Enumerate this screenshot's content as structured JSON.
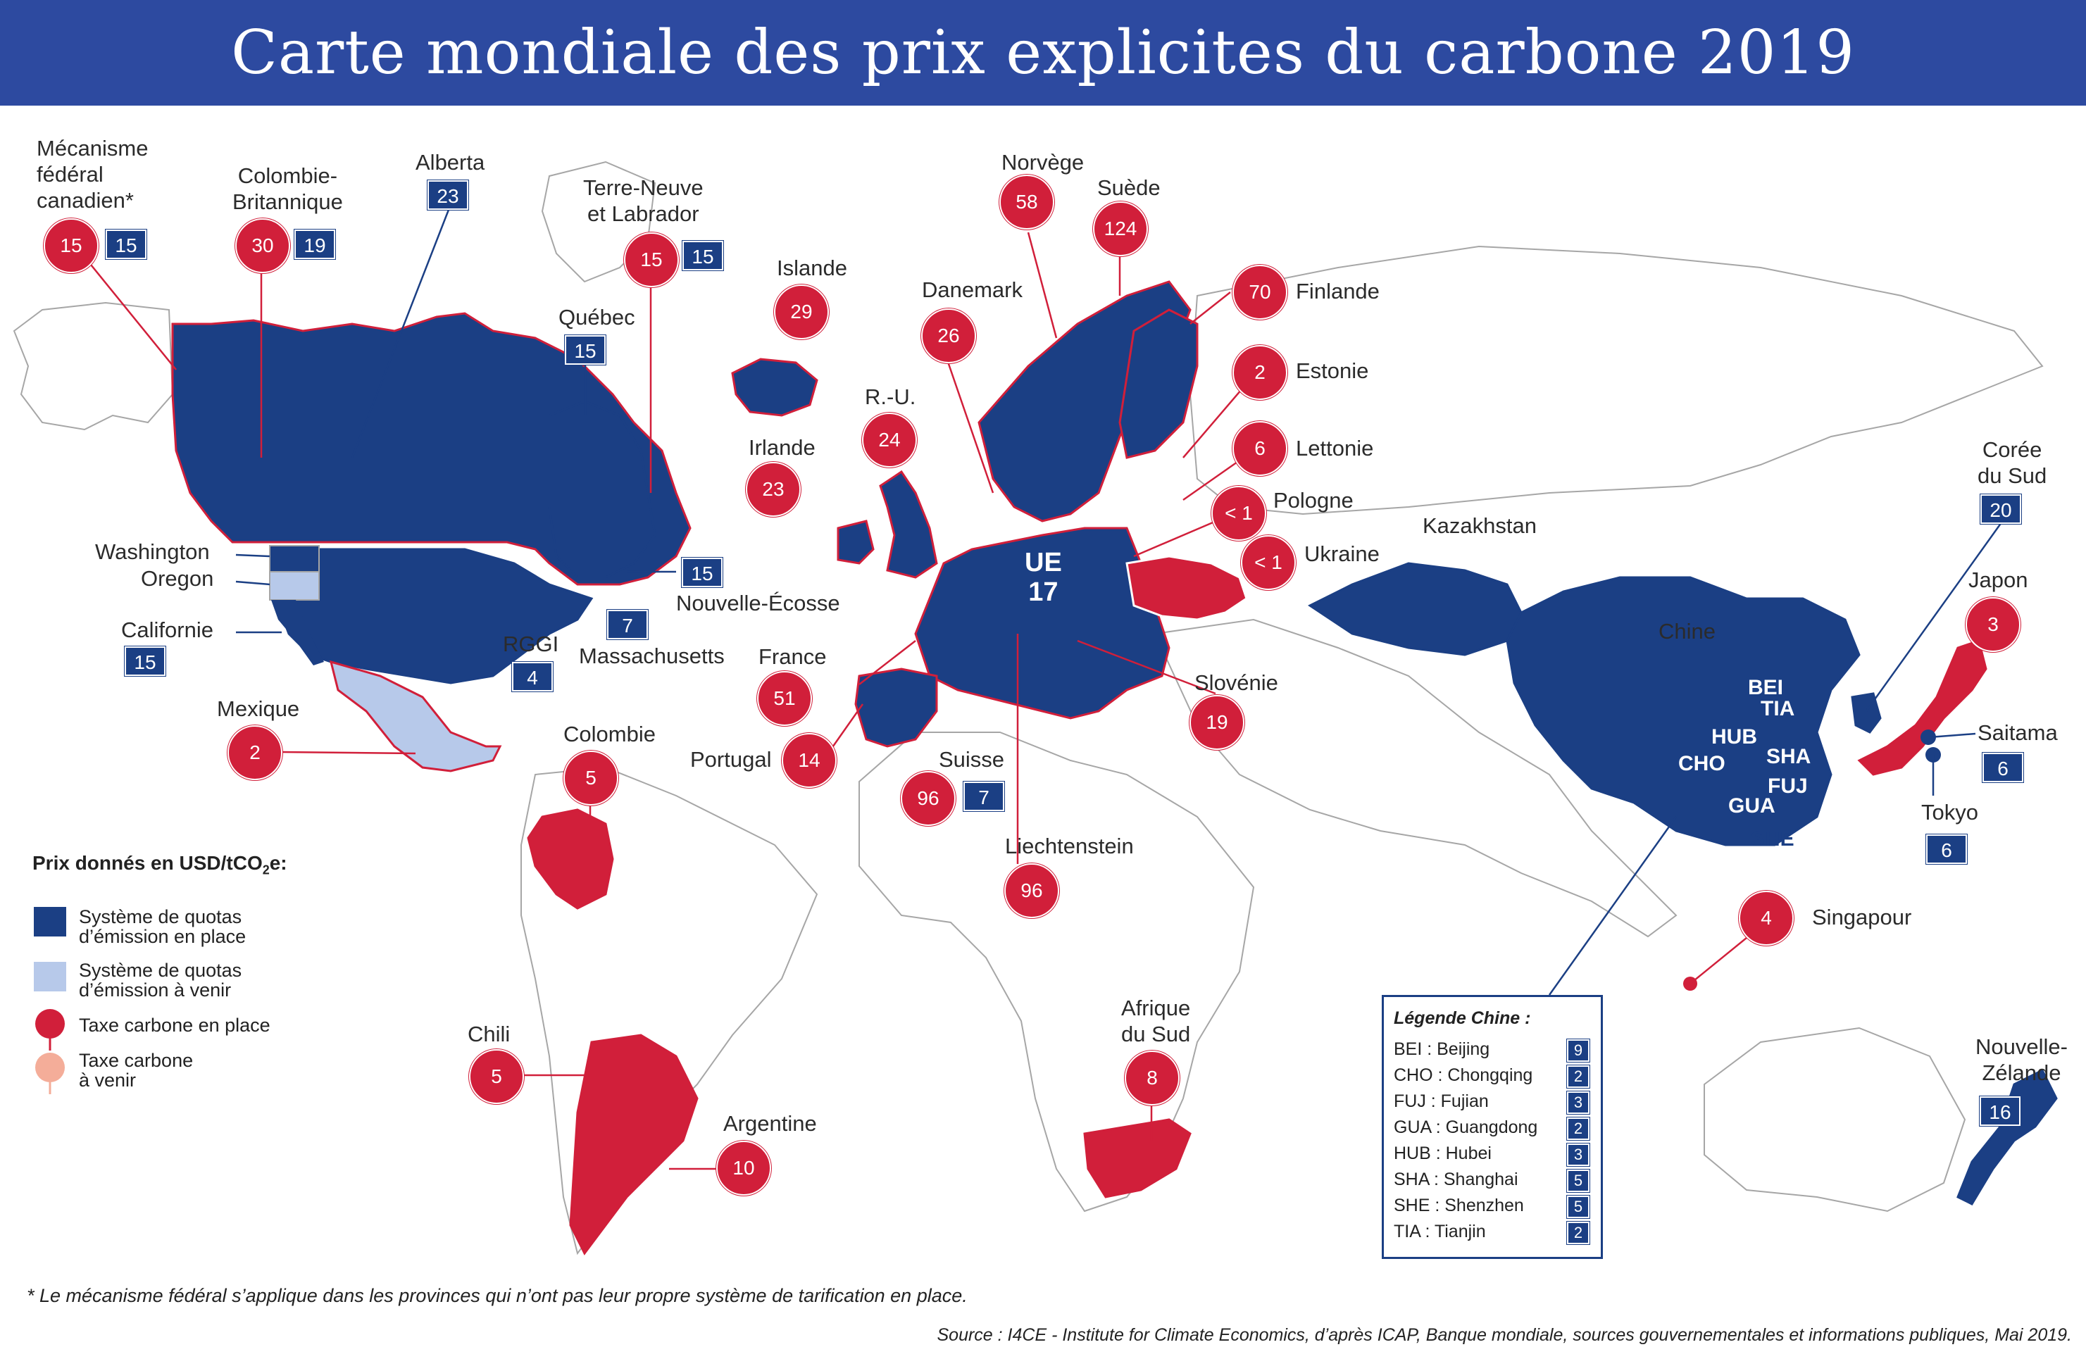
{
  "title": "Carte mondiale des prix explicites du carbone 2019",
  "colors": {
    "ets_in_place": "#1b3f84",
    "ets_planned": "#b7c9ea",
    "tax_in_place": "#d11f3a",
    "tax_planned": "#f4ad99",
    "header": "#2d4aa0",
    "land": "#ffffff",
    "border": "#a6a6a6"
  },
  "labels": {
    "mecanisme": "Mécanisme\nfédéral\ncanadien*",
    "colombie_britannique": "Colombie-\nBritannique",
    "alberta": "Alberta",
    "terre_neuve": "Terre-Neuve\net Labrador",
    "quebec": "Québec",
    "washington": "Washington",
    "oregon": "Oregon",
    "californie": "Californie",
    "rggi": "RGGI",
    "massachusetts": "Massachusetts",
    "nouvelle_ecosse": "Nouvelle-Écosse",
    "mexique": "Mexique",
    "colombie": "Colombie",
    "chili": "Chili",
    "argentine": "Argentine",
    "islande": "Islande",
    "irlande": "Irlande",
    "ru": "R.-U.",
    "danemark": "Danemark",
    "norvege": "Norvège",
    "suede": "Suède",
    "finlande": "Finlande",
    "estonie": "Estonie",
    "lettonie": "Lettonie",
    "pologne": "Pologne",
    "ukraine": "Ukraine",
    "france": "France",
    "portugal": "Portugal",
    "suisse": "Suisse",
    "liechtenstein": "Liechtenstein",
    "slovenie": "Slovénie",
    "afrique_du_sud": "Afrique\ndu Sud",
    "kazakhstan": "Kazakhstan",
    "chine": "Chine",
    "coree": "Corée\ndu Sud",
    "japon": "Japon",
    "saitama": "Saitama",
    "tokyo": "Tokyo",
    "singapour": "Singapour",
    "nz": "Nouvelle-\nZélande"
  },
  "prices": {
    "mecanisme_tax": "15",
    "mecanisme_ets": "15",
    "cb_tax": "30",
    "cb_ets": "19",
    "alberta_ets": "23",
    "tn_tax": "15",
    "tn_ets": "15",
    "quebec_ets": "15",
    "california_ets": "15",
    "rggi_ets": "4",
    "massachusetts_ets": "7",
    "ne_ets": "15",
    "mexique_tax": "2",
    "colombie_tax": "5",
    "chili_tax": "5",
    "argentine_tax": "10",
    "islande_tax": "29",
    "irlande_tax": "23",
    "ru_tax": "24",
    "danemark_tax": "26",
    "norvege_tax": "58",
    "suede_tax": "124",
    "finlande_tax": "70",
    "estonie_tax": "2",
    "lettonie_tax": "6",
    "pologne_tax": "< 1",
    "ukraine_tax": "< 1",
    "france_tax": "51",
    "portugal_tax": "14",
    "suisse_tax": "96",
    "suisse_ets": "7",
    "liechtenstein_tax": "96",
    "slovenie_tax": "19",
    "afrique_tax": "8",
    "coree_ets": "20",
    "japon_tax": "3",
    "saitama_ets": "6",
    "tokyo_ets": "6",
    "singapour_tax": "4",
    "nz_ets": "16",
    "eu_name": "UE",
    "eu_ets": "17"
  },
  "china_map_labels": [
    "BEI",
    "TIA",
    "HUB",
    "CHO",
    "SHA",
    "FUJ",
    "GUA",
    "SHE"
  ],
  "legend": {
    "title_main": "Prix donnés en USD/tCO",
    "title_sub": "2",
    "title_end": "e:",
    "items": [
      {
        "label": "Système de quotas\nd’émission en place",
        "kind": "ets_in_place"
      },
      {
        "label": "Système de quotas\nd’émission à venir",
        "kind": "ets_planned"
      },
      {
        "label": "Taxe carbone en place",
        "kind": "tax_in_place"
      },
      {
        "label": "Taxe carbone\nà venir",
        "kind": "tax_planned"
      }
    ]
  },
  "china_legend": {
    "title": "Légende Chine :",
    "rows": [
      {
        "label": "BEI : Beijing",
        "value": "9"
      },
      {
        "label": "CHO : Chongqing",
        "value": "2"
      },
      {
        "label": "FUJ : Fujian",
        "value": "3"
      },
      {
        "label": "GUA : Guangdong",
        "value": "2"
      },
      {
        "label": "HUB : Hubei",
        "value": "3"
      },
      {
        "label": "SHA : Shanghai",
        "value": "5"
      },
      {
        "label": "SHE : Shenzhen",
        "value": "5"
      },
      {
        "label": "TIA : Tianjin",
        "value": "2"
      }
    ]
  },
  "footnote": "* Le mécanisme fédéral s’applique dans les provinces qui n’ont pas leur propre système de tarification en place.",
  "source": "Source : I4CE - Institute for Climate Economics, d’après ICAP, Banque mondiale, sources gouvernementales et informations publiques, Mai 2019."
}
